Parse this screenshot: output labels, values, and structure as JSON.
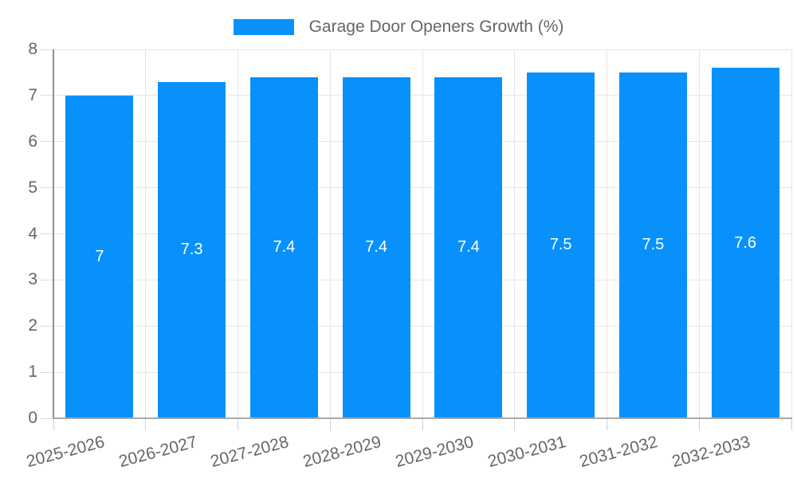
{
  "legend": {
    "label": "Garage Door Openers Growth (%)"
  },
  "chart_data": {
    "type": "bar",
    "title": "Garage Door Openers Growth (%)",
    "categories": [
      "2025-2026",
      "2026-2027",
      "2027-2028",
      "2028-2029",
      "2029-2030",
      "2030-2031",
      "2031-2032",
      "2032-2033"
    ],
    "values": [
      7,
      7.3,
      7.4,
      7.4,
      7.4,
      7.5,
      7.5,
      7.6
    ],
    "value_labels": [
      "7",
      "7.3",
      "7.4",
      "7.4",
      "7.4",
      "7.5",
      "7.5",
      "7.6"
    ],
    "xlabel": "",
    "ylabel": "",
    "ylim": [
      0,
      8
    ],
    "ytick_step": 1,
    "yticks": [
      0,
      1,
      2,
      3,
      4,
      5,
      6,
      7,
      8
    ],
    "grid": true,
    "legend_position": "top",
    "bar_color": "#0991fb",
    "axis_text_color": "#666666",
    "grid_color": "#e6e6e6",
    "value_label_color": "#ffffff"
  }
}
